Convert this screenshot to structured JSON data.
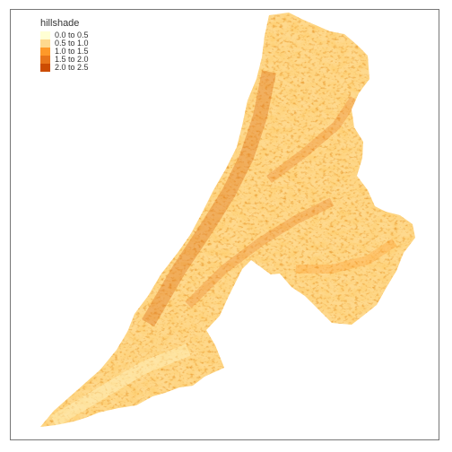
{
  "map": {
    "legend_title": "hillshade",
    "legend_items": [
      {
        "label": "0.0 to 0.5",
        "color": "#ffffd4"
      },
      {
        "label": "0.5 to 1.0",
        "color": "#fed98e"
      },
      {
        "label": "1.0 to 1.5",
        "color": "#fe9929"
      },
      {
        "label": "1.5 to 2.0",
        "color": "#e8751a"
      },
      {
        "label": "2.0 to 2.5",
        "color": "#cc4c02"
      }
    ],
    "icon": "watershed-hillshade-raster"
  }
}
